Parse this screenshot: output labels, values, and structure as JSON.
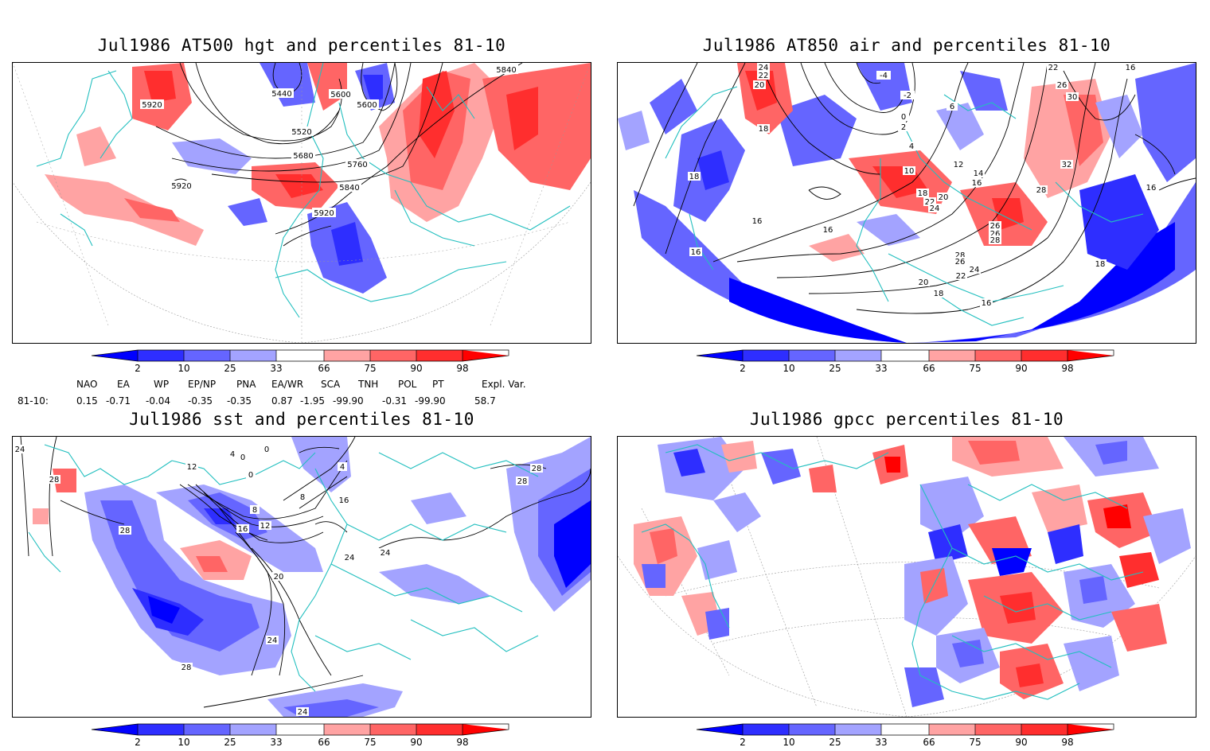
{
  "panels": [
    {
      "title": "Jul1986 AT500 hgt and percentiles 81-10",
      "contour_labels": [
        "5840",
        "5920",
        "5440",
        "5600",
        "5600",
        "5520",
        "5680",
        "5760",
        "5920",
        "5840",
        "5920"
      ]
    },
    {
      "title": "Jul1986 AT850 air and percentiles 81-10",
      "contour_labels": [
        "24",
        "22",
        "20",
        "18",
        "-4",
        "-2",
        "0",
        "2",
        "4",
        "6",
        "10",
        "12",
        "14",
        "16",
        "18",
        "20",
        "22",
        "24",
        "26",
        "26",
        "28",
        "28",
        "26",
        "22",
        "26",
        "30",
        "32",
        "28",
        "16",
        "16",
        "18",
        "16",
        "16",
        "18",
        "20",
        "24",
        "22",
        "18",
        "16",
        "16"
      ]
    },
    {
      "title": "Jul1986 sst and percentiles 81-10",
      "contour_labels": [
        "24",
        "28",
        "12",
        "4",
        "0",
        "0",
        "0",
        "4",
        "8",
        "8",
        "16",
        "16",
        "12",
        "28",
        "20",
        "24",
        "28",
        "28",
        "24",
        "24",
        "24",
        "28"
      ]
    },
    {
      "title": "Jul1986 gpcc percentiles 81-10",
      "contour_labels": []
    }
  ],
  "colorbar": {
    "labels": [
      "2",
      "10",
      "25",
      "33",
      "66",
      "75",
      "90",
      "98"
    ],
    "colors": [
      "#0000ff",
      "#2e2eff",
      "#6565ff",
      "#a3a3ff",
      "#ffffff",
      "#ffa3a3",
      "#ff6565",
      "#ff2e2e",
      "#ff0000"
    ]
  },
  "indices": {
    "row_label": "81-10:",
    "names": [
      "NAO",
      "EA",
      "WP",
      "EP/NP",
      "PNA",
      "EA/WR",
      "SCA",
      "TNH",
      "POL",
      "PT",
      "Expl. Var."
    ],
    "values": [
      "0.15",
      "-0.71",
      "-0.04",
      "-0.35",
      "-0.35",
      "0.87",
      "-1.95",
      "-99.90",
      "-0.31",
      "-99.90",
      "58.7"
    ]
  }
}
